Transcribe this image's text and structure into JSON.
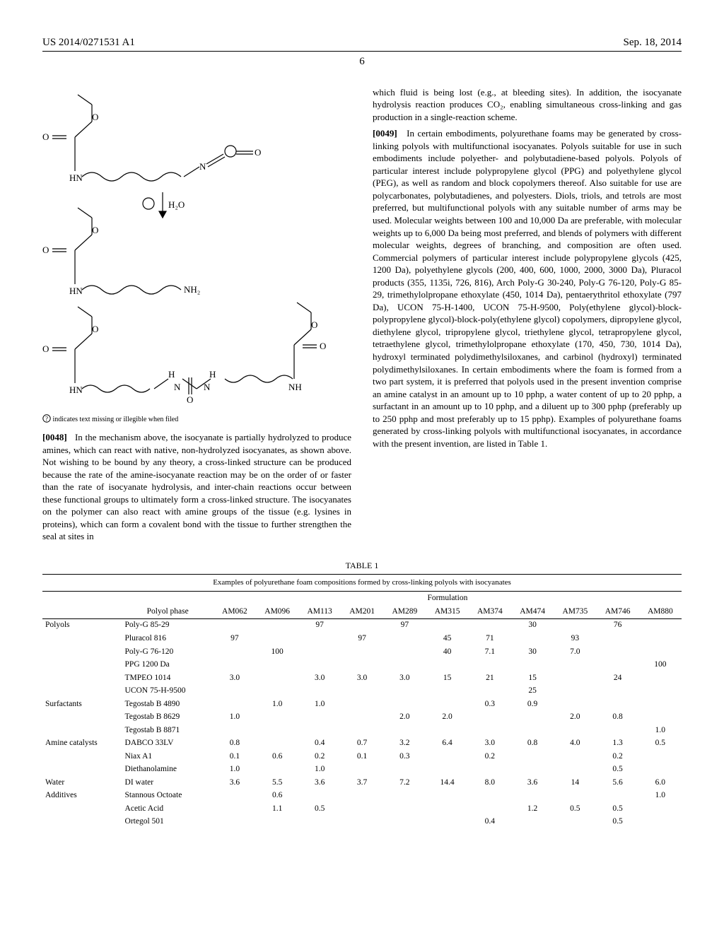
{
  "header": {
    "left": "US 2014/0271531 A1",
    "right": "Sep. 18, 2014",
    "page_num": "6"
  },
  "chemistry_footnote_icon": "?",
  "chemistry_footnote": " indicates text missing or illegible when filed",
  "para_0048_num": "[0048]",
  "para_0048": "In the mechanism above, the isocyanate is partially hydrolyzed to produce amines, which can react with native, non-hydrolyzed isocyanates, as shown above. Not wishing to be bound by any theory, a cross-linked structure can be produced because the rate of the amine-isocyanate reaction may be on the order of or faster than the rate of isocyanate hydrolysis, and inter-chain reactions occur between these functional groups to ultimately form a cross-linked structure. The isocyanates on the polymer can also react with amine groups of the tissue (e.g. lysines in proteins), which can form a covalent bond with the tissue to further strengthen the seal at sites in",
  "para_rcol_lead": "which fluid is being lost (e.g., at bleeding sites). In addition, the isocyanate hydrolysis reaction produces CO₂, enabling simultaneous cross-linking and gas production in a single-reaction scheme.",
  "para_0049_num": "[0049]",
  "para_0049": "In certain embodiments, polyurethane foams may be generated by cross-linking polyols with multifunctional isocyanates. Polyols suitable for use in such embodiments include polyether- and polybutadiene-based polyols. Polyols of particular interest include polypropylene glycol (PPG) and polyethylene glycol (PEG), as well as random and block copolymers thereof. Also suitable for use are polycarbonates, polybutadienes, and polyesters. Diols, triols, and tetrols are most preferred, but multifunctional polyols with any suitable number of arms may be used. Molecular weights between 100 and 10,000 Da are preferable, with molecular weights up to 6,000 Da being most preferred, and blends of polymers with different molecular weights, degrees of branching, and composition are often used. Commercial polymers of particular interest include polypropylene glycols (425, 1200 Da), polyethylene glycols (200, 400, 600, 1000, 2000, 3000 Da), Pluracol products (355, 1135i, 726, 816), Arch Poly-G 30-240, Poly-G 76-120, Poly-G 85-29, trimethylolpropane ethoxylate (450, 1014 Da), pentaerythritol ethoxylate (797 Da), UCON 75-H-1400, UCON 75-H-9500, Poly(ethylene glycol)-block-polypropylene glycol)-block-poly(ethylene glycol) copolymers, dipropylene glycol, diethylene glycol, tripropylene glycol, triethylene glycol, tetrapropylene glycol, tetraethylene glycol, trimethylolpropane ethoxylate (170, 450, 730, 1014 Da), hydroxyl terminated polydimethylsiloxanes, and carbinol (hydroxyl) terminated polydimethylsiloxanes. In certain embodiments where the foam is formed from a two part system, it is preferred that polyols used in the present invention comprise an amine catalyst in an amount up to 10 pphp, a water content of up to 20 pphp, a surfactant in an amount up to 10 pphp, and a diluent up to 300 pphp (preferably up to 250 pphp and most preferably up to 15 pphp). Examples of polyurethane foams generated by cross-linking polyols with multifunctional isocyanates, in accordance with the present invention, are listed in Table 1.",
  "table": {
    "label": "TABLE 1",
    "title": "Examples of polyurethane foam compositions formed by cross-linking polyols with isocyanates",
    "section_header": "Formulation",
    "phase_label": "Polyol phase",
    "columns": [
      "AM062",
      "AM096",
      "AM113",
      "AM201",
      "AM289",
      "AM315",
      "AM374",
      "AM474",
      "AM735",
      "AM746",
      "AM880"
    ],
    "groups": [
      {
        "name": "Polyols",
        "rows": [
          {
            "label": "Poly-G 85-29",
            "v": [
              "",
              "",
              "97",
              "",
              "97",
              "",
              "",
              "30",
              "",
              "76",
              ""
            ]
          },
          {
            "label": "Pluracol 816",
            "v": [
              "97",
              "",
              "",
              "97",
              "",
              "45",
              "71",
              "",
              "93",
              "",
              ""
            ]
          },
          {
            "label": "Poly-G 76-120",
            "v": [
              "",
              "100",
              "",
              "",
              "",
              "40",
              "7.1",
              "30",
              "7.0",
              "",
              ""
            ]
          },
          {
            "label": "PPG 1200 Da",
            "v": [
              "",
              "",
              "",
              "",
              "",
              "",
              "",
              "",
              "",
              "",
              "100"
            ]
          },
          {
            "label": "TMPEO 1014",
            "v": [
              "3.0",
              "",
              "3.0",
              "3.0",
              "3.0",
              "15",
              "21",
              "15",
              "",
              "24",
              ""
            ]
          },
          {
            "label": "UCON 75-H-9500",
            "v": [
              "",
              "",
              "",
              "",
              "",
              "",
              "",
              "25",
              "",
              "",
              ""
            ]
          }
        ]
      },
      {
        "name": "Surfactants",
        "rows": [
          {
            "label": "Tegostab B 4890",
            "v": [
              "",
              "1.0",
              "1.0",
              "",
              "",
              "",
              "0.3",
              "0.9",
              "",
              "",
              ""
            ]
          },
          {
            "label": "Tegostab B 8629",
            "v": [
              "1.0",
              "",
              "",
              "",
              "2.0",
              "2.0",
              "",
              "",
              "2.0",
              "0.8",
              ""
            ]
          },
          {
            "label": "Tegostab B 8871",
            "v": [
              "",
              "",
              "",
              "",
              "",
              "",
              "",
              "",
              "",
              "",
              "1.0"
            ]
          }
        ]
      },
      {
        "name": "Amine catalysts",
        "rows": [
          {
            "label": "DABCO 33LV",
            "v": [
              "0.8",
              "",
              "0.4",
              "0.7",
              "3.2",
              "6.4",
              "3.0",
              "0.8",
              "4.0",
              "1.3",
              "0.5"
            ]
          },
          {
            "label": "Niax A1",
            "v": [
              "0.1",
              "0.6",
              "0.2",
              "0.1",
              "0.3",
              "",
              "0.2",
              "",
              "",
              "0.2",
              ""
            ]
          },
          {
            "label": "Diethanolamine",
            "v": [
              "1.0",
              "",
              "1.0",
              "",
              "",
              "",
              "",
              "",
              "",
              "0.5",
              ""
            ]
          }
        ]
      },
      {
        "name": "Water",
        "rows": [
          {
            "label": "DI water",
            "v": [
              "3.6",
              "5.5",
              "3.6",
              "3.7",
              "7.2",
              "14.4",
              "8.0",
              "3.6",
              "14",
              "5.6",
              "6.0"
            ]
          }
        ]
      },
      {
        "name": "Additives",
        "rows": [
          {
            "label": "Stannous Octoate",
            "v": [
              "",
              "0.6",
              "",
              "",
              "",
              "",
              "",
              "",
              "",
              "",
              "1.0"
            ]
          },
          {
            "label": "Acetic Acid",
            "v": [
              "",
              "1.1",
              "0.5",
              "",
              "",
              "",
              "",
              "1.2",
              "0.5",
              "0.5",
              ""
            ]
          },
          {
            "label": "Ortegol 501",
            "v": [
              "",
              "",
              "",
              "",
              "",
              "",
              "0.4",
              "",
              "",
              "0.5",
              ""
            ]
          }
        ]
      }
    ]
  },
  "svg": {
    "labels": {
      "HN1": "HN",
      "HN2": "HN",
      "HN3": "HN",
      "O1": "O",
      "O2": "O",
      "O3": "O",
      "NH2": "NH₂",
      "NH": "NH",
      "H2O": "H₂O",
      "N": "N",
      "H": "H",
      "OeqA": "O",
      "OeqB": "O",
      "OeqC": "O",
      "OeqD": "O",
      "OeqE": "O",
      "OeqF": "O",
      "OeqG": "O",
      "OeqH": "O"
    },
    "stroke": "#000000",
    "stroke_width": 1.2
  }
}
